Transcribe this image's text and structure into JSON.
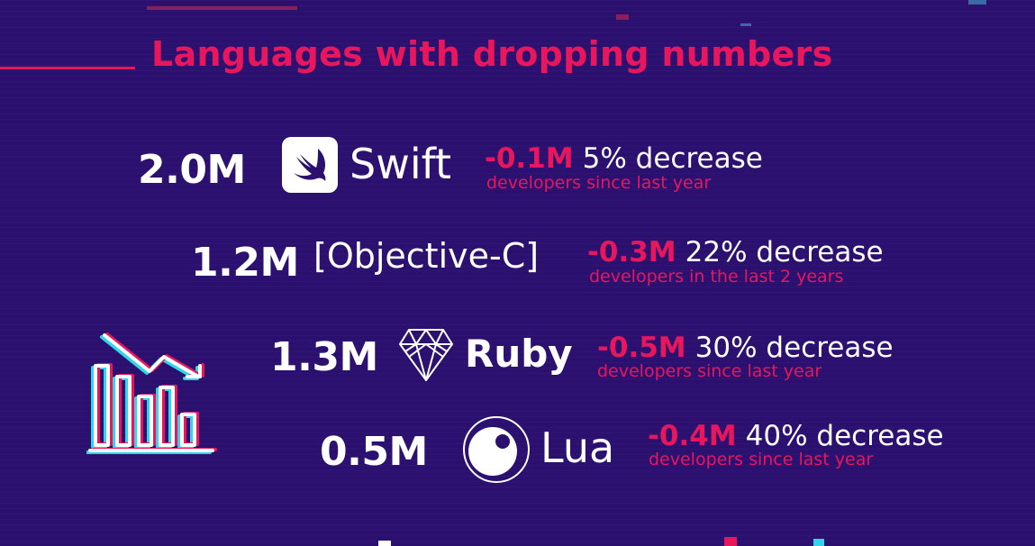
{
  "colors": {
    "background": "#2b1070",
    "accent": "#e8175d",
    "text": "#ffffff",
    "icon_cyan": "#2fd6e8"
  },
  "title": "Languages with dropping numbers",
  "icons": {
    "chart": "declining-bar-chart-icon",
    "swift": "swift-logo-icon",
    "ruby": "ruby-gem-icon",
    "lua": "lua-logo-icon"
  },
  "languages": [
    {
      "count": "2.0M",
      "name": "Swift",
      "delta": "-0.1M",
      "change": "5% decrease",
      "note": "developers since last year"
    },
    {
      "count": "1.2M",
      "name": "[Objective-C]",
      "delta": "-0.3M",
      "change": "22% decrease",
      "note": "developers in the last 2 years"
    },
    {
      "count": "1.3M",
      "name": "Ruby",
      "delta": "-0.5M",
      "change": "30% decrease",
      "note": "developers since last year"
    },
    {
      "count": "0.5M",
      "name": "Lua",
      "delta": "-0.4M",
      "change": "40% decrease",
      "note": "developers since last year"
    }
  ]
}
